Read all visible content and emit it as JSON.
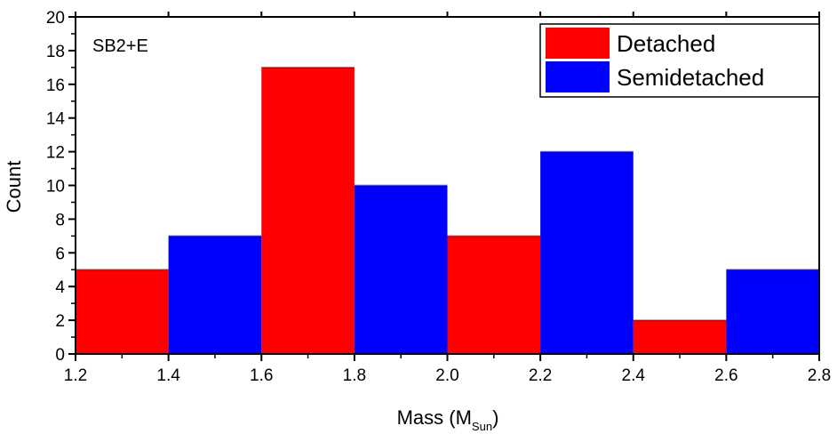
{
  "chart_data": {
    "type": "bar",
    "subtype": "histogram",
    "annotation": "SB2+E",
    "xlabel": {
      "prefix": "Mass (M",
      "subscript": "Sun",
      "suffix": ")"
    },
    "ylabel": "Count",
    "xlim": [
      1.2,
      2.8
    ],
    "ylim": [
      0,
      20
    ],
    "x_ticks": [
      "1.2",
      "1.4",
      "1.6",
      "1.8",
      "2.0",
      "2.2",
      "2.4",
      "2.6",
      "2.8"
    ],
    "y_ticks": [
      "0",
      "2",
      "4",
      "6",
      "8",
      "10",
      "12",
      "14",
      "16",
      "18",
      "20"
    ],
    "legend_position": "top-right",
    "series": [
      {
        "name": "Detached",
        "color": "#ff0000",
        "bins": [
          {
            "x0": 1.2,
            "x1": 1.4,
            "value": 5
          },
          {
            "x0": 1.6,
            "x1": 1.8,
            "value": 17
          },
          {
            "x0": 2.0,
            "x1": 2.2,
            "value": 7
          },
          {
            "x0": 2.4,
            "x1": 2.6,
            "value": 2
          }
        ]
      },
      {
        "name": "Semidetached",
        "color": "#0000ff",
        "bins": [
          {
            "x0": 1.4,
            "x1": 1.6,
            "value": 7
          },
          {
            "x0": 1.8,
            "x1": 2.0,
            "value": 10
          },
          {
            "x0": 2.2,
            "x1": 2.4,
            "value": 12
          },
          {
            "x0": 2.6,
            "x1": 2.8,
            "value": 5
          }
        ]
      }
    ]
  }
}
